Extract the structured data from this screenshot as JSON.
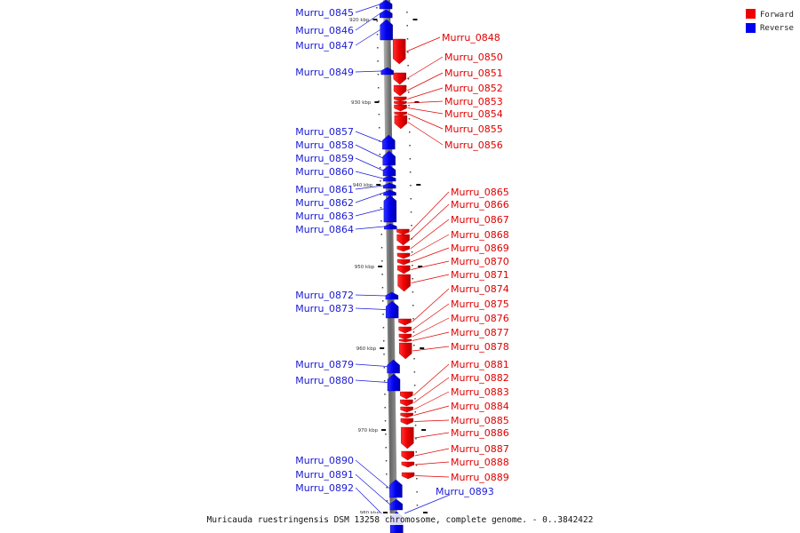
{
  "caption": "Muricauda ruestringensis DSM 13258 chromosome, complete genome. - 0..3842422",
  "legend": [
    {
      "label": "Forward",
      "color": "#ee0000"
    },
    {
      "label": "Reverse",
      "color": "#0000ee"
    }
  ],
  "ruler": [
    "920 kbp",
    "930 kbp",
    "940 kbp",
    "950 kbp",
    "960 kbp",
    "970 kbp",
    "980 kbp"
  ],
  "genes_reverse": [
    "Murru_0845",
    "Murru_0846",
    "Murru_0847",
    "Murru_0849",
    "Murru_0857",
    "Murru_0858",
    "Murru_0859",
    "Murru_0860",
    "Murru_0861",
    "Murru_0862",
    "Murru_0863",
    "Murru_0864",
    "Murru_0872",
    "Murru_0873",
    "Murru_0879",
    "Murru_0880",
    "Murru_0890",
    "Murru_0891",
    "Murru_0892",
    "Murru_0893"
  ],
  "genes_forward": [
    "Murru_0848",
    "Murru_0850",
    "Murru_0851",
    "Murru_0852",
    "Murru_0853",
    "Murru_0854",
    "Murru_0855",
    "Murru_0856",
    "Murru_0865",
    "Murru_0866",
    "Murru_0867",
    "Murru_0868",
    "Murru_0869",
    "Murru_0870",
    "Murru_0871",
    "Murru_0874",
    "Murru_0875",
    "Murru_0876",
    "Murru_0877",
    "Murru_0878",
    "Murru_0881",
    "Murru_0882",
    "Murru_0883",
    "Murru_0884",
    "Murru_0885",
    "Murru_0886",
    "Murru_0887",
    "Murru_0888",
    "Murru_0889"
  ]
}
